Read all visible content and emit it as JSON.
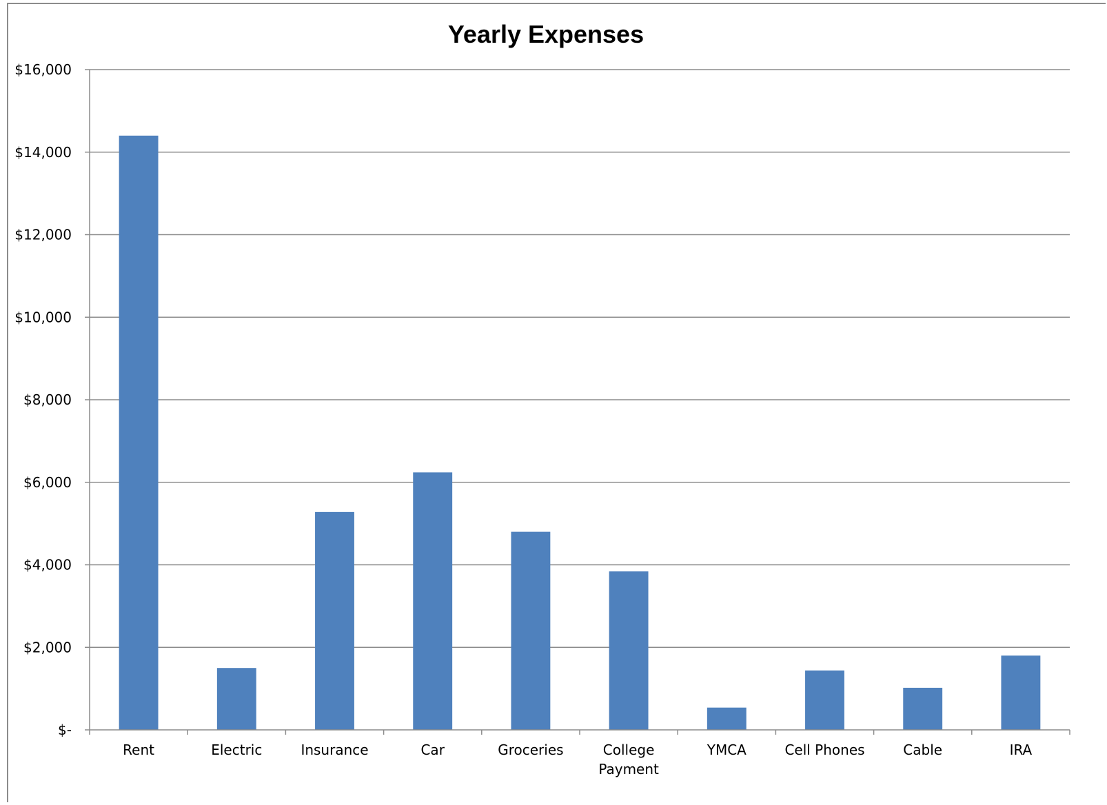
{
  "chart_data": {
    "type": "bar",
    "title": "Yearly Expenses",
    "xlabel": "",
    "ylabel": "",
    "categories": [
      "Rent",
      "Electric",
      "Insurance",
      "Car",
      "Groceries",
      "College Payment",
      "YMCA",
      "Cell Phones",
      "Cable",
      "IRA"
    ],
    "category_label_lines": [
      [
        "Rent"
      ],
      [
        "Electric"
      ],
      [
        "Insurance"
      ],
      [
        "Car"
      ],
      [
        "Groceries"
      ],
      [
        "College",
        "Payment"
      ],
      [
        "YMCA"
      ],
      [
        "Cell Phones"
      ],
      [
        "Cable"
      ],
      [
        "IRA"
      ]
    ],
    "values": [
      14400,
      1500,
      5280,
      6240,
      4800,
      3840,
      540,
      1440,
      1020,
      1800
    ],
    "ylim": [
      0,
      16000
    ],
    "yticks": [
      0,
      2000,
      4000,
      6000,
      8000,
      10000,
      12000,
      14000,
      16000
    ],
    "ytick_labels": [
      "$-",
      "$2,000",
      "$4,000",
      "$6,000",
      "$8,000",
      "$10,000",
      "$12,000",
      "$14,000",
      "$16,000"
    ],
    "grid": true,
    "legend": "none",
    "bar_color": "#4f81bd",
    "grid_color": "#8c8c8c"
  }
}
